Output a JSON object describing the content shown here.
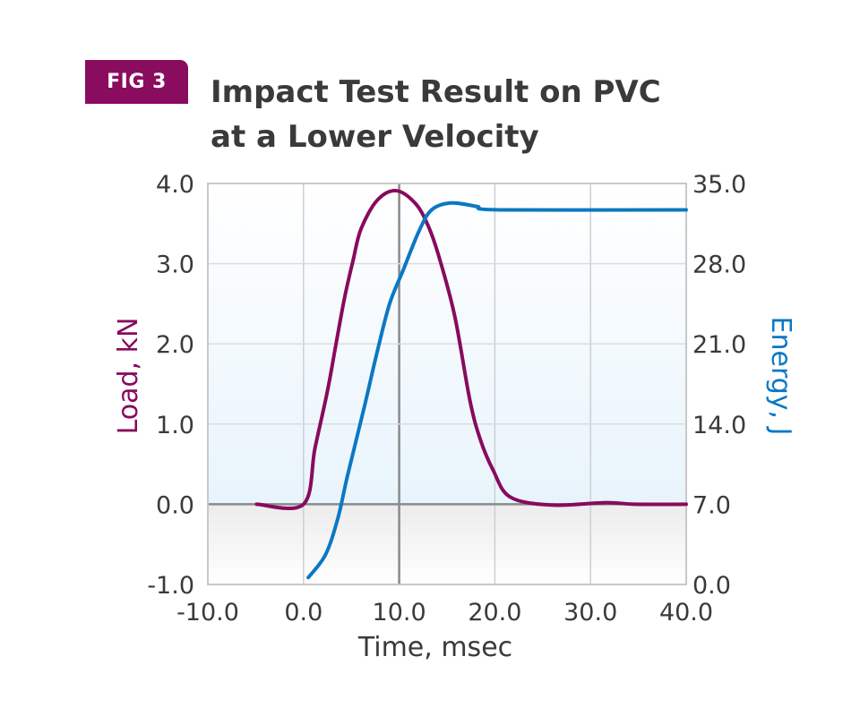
{
  "badge": "FIG 3",
  "title_line1": "Impact Test Result on PVC",
  "title_line2": "at a Lower Velocity",
  "colors": {
    "badge": "#8a0c5f",
    "load": "#880a5e",
    "energy": "#0b78c3",
    "title": "#3a3a3a"
  },
  "chart_data": {
    "type": "line",
    "title": "Impact Test Result on PVC at a Lower Velocity",
    "xlabel": "Time, msec",
    "ylabel": "Load, kN",
    "y2label": "Energy, J",
    "xlim": [
      -10,
      40
    ],
    "ylim": [
      -1,
      4
    ],
    "y2lim": [
      0,
      35
    ],
    "xticks": [
      "-10.0",
      "0.0",
      "10.0",
      "20.0",
      "30.0",
      "40.0"
    ],
    "yticks": [
      "-1.0",
      "0.0",
      "1.0",
      "2.0",
      "3.0",
      "4.0"
    ],
    "y2ticks": [
      "0.0",
      "7.0",
      "14.0",
      "21.0",
      "28.0",
      "35.0"
    ],
    "grid": true,
    "series": [
      {
        "name": "Load, kN",
        "axis": "left",
        "x": [
          -4.9,
          0,
          1.2,
          2.5,
          3.4,
          4.3,
          5.2,
          6.0,
          7.7,
          9.7,
          11.7,
          13.0,
          14.1,
          15.8,
          17.4,
          18.5,
          19.8,
          21.6,
          25.9,
          31.6,
          34.6,
          40
        ],
        "y": [
          0,
          0,
          0.7,
          1.41,
          2.0,
          2.58,
          3.05,
          3.43,
          3.79,
          3.91,
          3.75,
          3.48,
          3.11,
          2.35,
          1.29,
          0.8,
          0.43,
          0.09,
          -0.01,
          0.02,
          0,
          0
        ]
      },
      {
        "name": "Energy, J",
        "axis": "right",
        "x": [
          0.5,
          2.3,
          3.6,
          4.6,
          6.3,
          7.7,
          9.0,
          10.4,
          12.1,
          13.4,
          15.4,
          18.1,
          20.5,
          40
        ],
        "y": [
          0.6,
          2.6,
          5.8,
          9.5,
          15.3,
          20.3,
          24.5,
          27.4,
          30.9,
          32.7,
          33.3,
          33.0,
          32.7,
          32.7
        ]
      }
    ]
  }
}
